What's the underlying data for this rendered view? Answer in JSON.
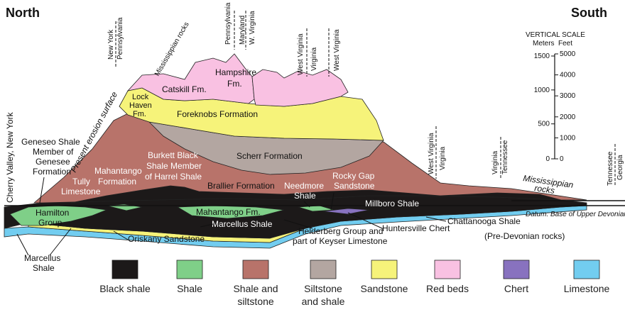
{
  "titles": {
    "north": "North",
    "south": "South"
  },
  "colors": {
    "black_shale": "#1c1919",
    "shale": "#7fcf88",
    "shale_siltstone": "#b8736a",
    "siltstone_shale": "#b3a6a1",
    "sandstone": "#f6f37a",
    "red_beds": "#f9c1e2",
    "chert": "#8872bf",
    "limestone": "#72cdf0"
  },
  "locations": {
    "cherry_valley": "Cherry Valley, New York",
    "ny": "New York",
    "pa": "Pennsylvania",
    "miss_rocks": "Mississippian rocks",
    "pa2": "Pennsylvania",
    "md": "Maryland",
    "wv": "W. Virginia",
    "wv2": "West Virginia",
    "va": "Virginia",
    "wv3": "West Virginia",
    "wv4": "West Virginia",
    "va2": "Virginia",
    "va3": "Virginia",
    "tn": "Tennessee",
    "tn2": "Tennessee",
    "ga": "Georgia"
  },
  "formations": {
    "present_surface": "Present erosion surface",
    "catskill": "Catskill Fm.",
    "hampshire_1": "Hampshire",
    "hampshire_2": "Fm.",
    "lock_haven_1": "Lock",
    "lock_haven_2": "Haven",
    "lock_haven_3": "Fm.",
    "foreknobs": "Foreknobs Formation",
    "scherr": "Scherr Formation",
    "geneseo_1": "Geneseo Shale",
    "geneseo_2": "Member of",
    "geneseo_3": "Genesee",
    "geneseo_4": "Formation",
    "burkett_1": "Burkett Black",
    "burkett_2": "Shale Member",
    "burkett_3": "of Harrel Shale",
    "mahantango_1": "Mahantango",
    "mahantango_2": "Formation",
    "tully_1": "Tully",
    "tully_2": "Limestone",
    "brallier": "Brallier Formation",
    "needmore_1": "Needmore",
    "needmore_2": "Shale",
    "rocky_gap_1": "Rocky Gap",
    "rocky_gap_2": "Sandstone",
    "miss_rocks_right_1": "Mississippian",
    "miss_rocks_right_2": "rocks",
    "datum": "Datum: Base of Upper Devonian",
    "hamilton_1": "Hamilton",
    "hamilton_2": "Group",
    "mahantango_fm": "Mahantango Fm.",
    "marcellus_shale": "Marcellus Shale",
    "millboro": "Millboro Shale",
    "huntersville": "Huntersville Chert",
    "chattanooga": "Chattanooga Shale",
    "pre_devonian": "(Pre-Devonian rocks)",
    "oriskany": "Oriskany Sandstone",
    "helderberg_1": "Helderberg Group and",
    "helderberg_2": "part of Keyser Limestone",
    "marcellus_1": "Marcellus",
    "marcellus_2": "Shale"
  },
  "scale": {
    "title": "VERTICAL SCALE",
    "meters_label": "Meters",
    "feet_label": "Feet",
    "meters_ticks": [
      "1500",
      "1000",
      "500",
      "0"
    ],
    "feet_ticks": [
      "5000",
      "4000",
      "3000",
      "2000",
      "1000",
      "0"
    ]
  },
  "legend": [
    {
      "label": "Black shale",
      "label2": "",
      "color": "#1c1919"
    },
    {
      "label": "Shale",
      "label2": "",
      "color": "#7fcf88"
    },
    {
      "label": "Shale and",
      "label2": "siltstone",
      "color": "#b8736a"
    },
    {
      "label": "Siltstone",
      "label2": "and shale",
      "color": "#b3a6a1"
    },
    {
      "label": "Sandstone",
      "label2": "",
      "color": "#f6f37a"
    },
    {
      "label": "Red beds",
      "label2": "",
      "color": "#f9c1e2"
    },
    {
      "label": "Chert",
      "label2": "",
      "color": "#8872bf"
    },
    {
      "label": "Limestone",
      "label2": "",
      "color": "#72cdf0"
    }
  ]
}
